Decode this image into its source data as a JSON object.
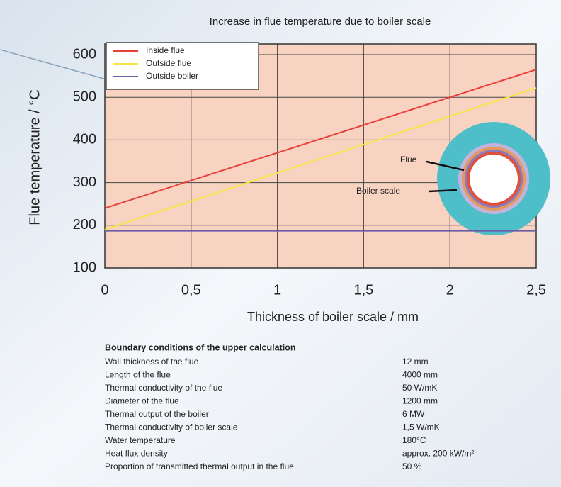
{
  "chart_data": {
    "type": "line",
    "title": "Increase in flue temperature due to boiler scale",
    "x_label": "Thickness of boiler scale  / mm",
    "y_label": "Flue temperature / °C",
    "x": [
      0,
      2.5
    ],
    "series": [
      {
        "name": "Inside flue",
        "color": "#e8403a",
        "values": [
          240,
          565
        ]
      },
      {
        "name": "Outside flue",
        "color": "#f5e642",
        "values": [
          190,
          522
        ]
      },
      {
        "name": "Outside boiler",
        "color": "#6a5aa8",
        "values": [
          187,
          187
        ]
      }
    ],
    "xlim": [
      0,
      2.5
    ],
    "ylim": [
      100,
      625
    ],
    "xticks": [
      0,
      {
        "value": 0.5,
        "label": "0,5"
      },
      1,
      {
        "value": 1.5,
        "label": "1,5"
      },
      2,
      {
        "value": 2.5,
        "label": "2,5"
      }
    ],
    "yticks": [
      100,
      200,
      300,
      400,
      500,
      600
    ],
    "grid": true,
    "legend": "upper left",
    "annotations": [
      "Flue",
      "Boiler scale"
    ]
  },
  "table": {
    "title": "Boundary conditions of the upper calculation",
    "rows": [
      [
        "Wall thickness of the flue",
        "12 mm"
      ],
      [
        "Length of the flue",
        "4000 mm"
      ],
      [
        "Thermal conductivity of the flue",
        "50 W/mK"
      ],
      [
        "Diameter of the flue",
        "1200 mm"
      ],
      [
        "Thermal output of the boiler",
        "6 MW"
      ],
      [
        "Thermal conductivity of boiler scale",
        "1,5 W/mK"
      ],
      [
        "Water temperature",
        "180°C"
      ],
      [
        "Heat flux density",
        "approx. 200 kW/m²"
      ],
      [
        "Proportion of transmitted thermal output in the flue",
        "50 %"
      ]
    ]
  }
}
